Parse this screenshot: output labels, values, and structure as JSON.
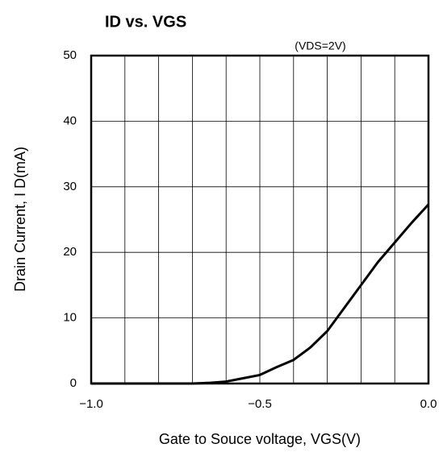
{
  "chart_data": {
    "type": "line",
    "title": "ID vs. VGS",
    "annotation": "(VDS=2V)",
    "x_label": "Gate to Souce voltage, VGS(V)",
    "y_label": "Drain Current, I D(mA)",
    "x": [
      -1.0,
      -0.7,
      -0.65,
      -0.6,
      -0.55,
      -0.5,
      -0.45,
      -0.4,
      -0.35,
      -0.3,
      -0.25,
      -0.2,
      -0.15,
      -0.1,
      -0.05,
      0.0
    ],
    "series": [
      {
        "name": "ID",
        "color": "#000000",
        "values": [
          0,
          0,
          0.1,
          0.3,
          0.8,
          1.3,
          2.5,
          3.6,
          5.5,
          8,
          11.5,
          15,
          18.5,
          21.5,
          24.5,
          27.3
        ]
      }
    ],
    "xlim": [
      -1.0,
      0.0
    ],
    "xticks": [
      {
        "value": -1.0,
        "label": "−1.0"
      },
      {
        "value": -0.5,
        "label": "−0.5"
      },
      {
        "value": 0.0,
        "label": "0.0"
      }
    ],
    "xgrid": [
      -0.9,
      -0.8,
      -0.7,
      -0.6,
      -0.4,
      -0.3,
      -0.2,
      -0.1
    ],
    "ylim": [
      0,
      50
    ],
    "yticks": [
      0,
      10,
      20,
      30,
      40,
      50
    ],
    "grid": true
  }
}
